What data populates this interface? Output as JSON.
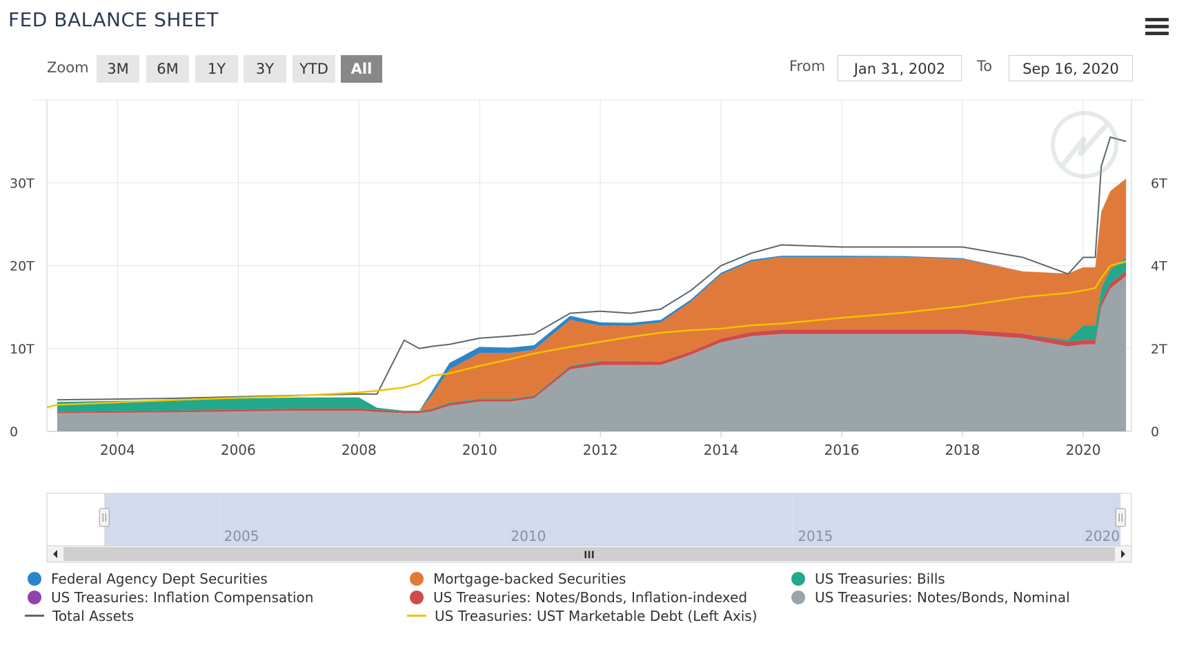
{
  "title": "FED BALANCE SHEET",
  "menu_icon": "hamburger-menu-icon",
  "zoom": {
    "label": "Zoom",
    "buttons": [
      "3M",
      "6M",
      "1Y",
      "3Y",
      "YTD",
      "All"
    ],
    "active": "All"
  },
  "range": {
    "from_label": "From",
    "from_value": "Jan 31, 2002",
    "to_label": "To",
    "to_value": "Sep 16, 2020"
  },
  "colors": {
    "agency": "#2a86c8",
    "mbs": "#e07a3a",
    "bills": "#23a88b",
    "inflation_comp": "#8e44ad",
    "tips": "#cf4b4b",
    "nominal": "#9ba5a9",
    "total_assets": "#5a6670",
    "ust_marketable": "#f2c200"
  },
  "chart_data": {
    "type": "area",
    "xlabel": "",
    "ylabel": "",
    "x_ticks": [
      "2004",
      "2006",
      "2008",
      "2010",
      "2012",
      "2014",
      "2016",
      "2018",
      "2020"
    ],
    "left_axis": {
      "ticks": [
        "0",
        "10T",
        "20T",
        "30T"
      ],
      "ylim": [
        0,
        40
      ]
    },
    "right_axis": {
      "ticks": [
        "0",
        "2T",
        "4T",
        "6T"
      ],
      "ylim": [
        0,
        8
      ]
    },
    "x": [
      2003.0,
      2005.0,
      2007.0,
      2008.0,
      2008.3,
      2008.75,
      2009.0,
      2009.2,
      2009.5,
      2010.0,
      2010.5,
      2010.9,
      2011.5,
      2012.0,
      2012.5,
      2013.0,
      2013.5,
      2014.0,
      2014.5,
      2015.0,
      2016.0,
      2017.0,
      2018.0,
      2019.0,
      2019.75,
      2020.0,
      2020.2,
      2020.3,
      2020.45,
      2020.71
    ],
    "series": [
      {
        "name": "US Treasuries: Notes/Bonds, Nominal",
        "values": [
          0.44,
          0.46,
          0.5,
          0.5,
          0.47,
          0.44,
          0.44,
          0.48,
          0.62,
          0.72,
          0.72,
          0.8,
          1.5,
          1.6,
          1.6,
          1.6,
          1.85,
          2.15,
          2.3,
          2.35,
          2.35,
          2.35,
          2.35,
          2.25,
          2.05,
          2.1,
          2.1,
          3.0,
          3.45,
          3.75
        ]
      },
      {
        "name": "US Treasuries: Notes/Bonds, Inflation-indexed",
        "values": [
          0.03,
          0.04,
          0.05,
          0.05,
          0.05,
          0.04,
          0.04,
          0.05,
          0.06,
          0.05,
          0.05,
          0.05,
          0.07,
          0.08,
          0.08,
          0.08,
          0.08,
          0.09,
          0.1,
          0.11,
          0.11,
          0.11,
          0.11,
          0.11,
          0.11,
          0.11,
          0.11,
          0.12,
          0.12,
          0.12
        ]
      },
      {
        "name": "US Treasuries: Inflation Compensation",
        "values": [
          0.0,
          0.0,
          0.0,
          0.0,
          0.0,
          0.0,
          0.0,
          0.0,
          0.0,
          0.0,
          0.0,
          0.0,
          0.0,
          0.0,
          0.0,
          0.0,
          0.0,
          0.0,
          0.0,
          0.0,
          0.0,
          0.0,
          0.0,
          0.0,
          0.0,
          0.0,
          0.0,
          0.0,
          0.0,
          0.0
        ]
      },
      {
        "name": "US Treasuries: Bills",
        "values": [
          0.24,
          0.26,
          0.27,
          0.27,
          0.05,
          0.02,
          0.02,
          0.02,
          0.02,
          0.02,
          0.02,
          0.02,
          0.02,
          0.02,
          0.02,
          0.0,
          0.0,
          0.0,
          0.0,
          0.0,
          0.0,
          0.0,
          0.0,
          0.0,
          0.05,
          0.35,
          0.35,
          0.33,
          0.33,
          0.33
        ]
      },
      {
        "name": "Mortgage-backed Securities",
        "values": [
          0.0,
          0.0,
          0.0,
          0.0,
          0.0,
          0.0,
          0.0,
          0.3,
          0.8,
          1.1,
          1.1,
          1.1,
          1.1,
          0.85,
          0.85,
          0.95,
          1.2,
          1.55,
          1.7,
          1.75,
          1.75,
          1.75,
          1.7,
          1.5,
          1.6,
          1.4,
          1.4,
          1.85,
          1.9,
          1.9
        ]
      },
      {
        "name": "Federal Agency Dept Securities",
        "values": [
          0.0,
          0.0,
          0.0,
          0.0,
          0.0,
          0.0,
          0.0,
          0.1,
          0.15,
          0.15,
          0.13,
          0.11,
          0.1,
          0.08,
          0.07,
          0.06,
          0.05,
          0.04,
          0.04,
          0.03,
          0.03,
          0.02,
          0.02,
          0.0,
          0.0,
          0.0,
          0.0,
          0.0,
          0.0,
          0.0
        ]
      },
      {
        "name": "Total Assets",
        "values": [
          0.76,
          0.8,
          0.87,
          0.9,
          0.9,
          2.2,
          2.0,
          2.05,
          2.1,
          2.25,
          2.3,
          2.35,
          2.85,
          2.9,
          2.85,
          2.95,
          3.4,
          4.0,
          4.3,
          4.5,
          4.45,
          4.45,
          4.45,
          4.2,
          3.8,
          4.2,
          4.2,
          6.4,
          7.1,
          7.0
        ]
      },
      {
        "name": "US Treasuries: UST Marketable Debt (Left Axis)",
        "values": [
          3.2,
          3.8,
          4.3,
          4.7,
          4.9,
          5.3,
          5.8,
          6.7,
          7.0,
          7.9,
          8.7,
          9.4,
          10.2,
          10.8,
          11.4,
          11.9,
          12.2,
          12.4,
          12.8,
          13.0,
          13.7,
          14.3,
          15.1,
          16.2,
          16.7,
          17.0,
          17.3,
          18.5,
          20.0,
          20.5
        ]
      }
    ]
  },
  "navigator": {
    "ticks": [
      "2005",
      "2010",
      "2015",
      "2020"
    ],
    "scroll_label": "III"
  },
  "legend": [
    {
      "label": "Federal Agency Dept Securities",
      "color": "#2a86c8",
      "kind": "dot"
    },
    {
      "label": "Mortgage-backed Securities",
      "color": "#e07a3a",
      "kind": "dot"
    },
    {
      "label": "US Treasuries: Bills",
      "color": "#23a88b",
      "kind": "dot"
    },
    {
      "label": "US Treasuries: Inflation Compensation",
      "color": "#8e44ad",
      "kind": "dot"
    },
    {
      "label": "US Treasuries: Notes/Bonds, Inflation-indexed",
      "color": "#cf4b4b",
      "kind": "dot"
    },
    {
      "label": "US Treasuries: Notes/Bonds, Nominal",
      "color": "#9ba5a9",
      "kind": "dot"
    },
    {
      "label": "Total Assets",
      "color": "#5a6670",
      "kind": "line"
    },
    {
      "label": "US Treasuries: UST Marketable Debt (Left Axis)",
      "color": "#f2c200",
      "kind": "line"
    }
  ]
}
